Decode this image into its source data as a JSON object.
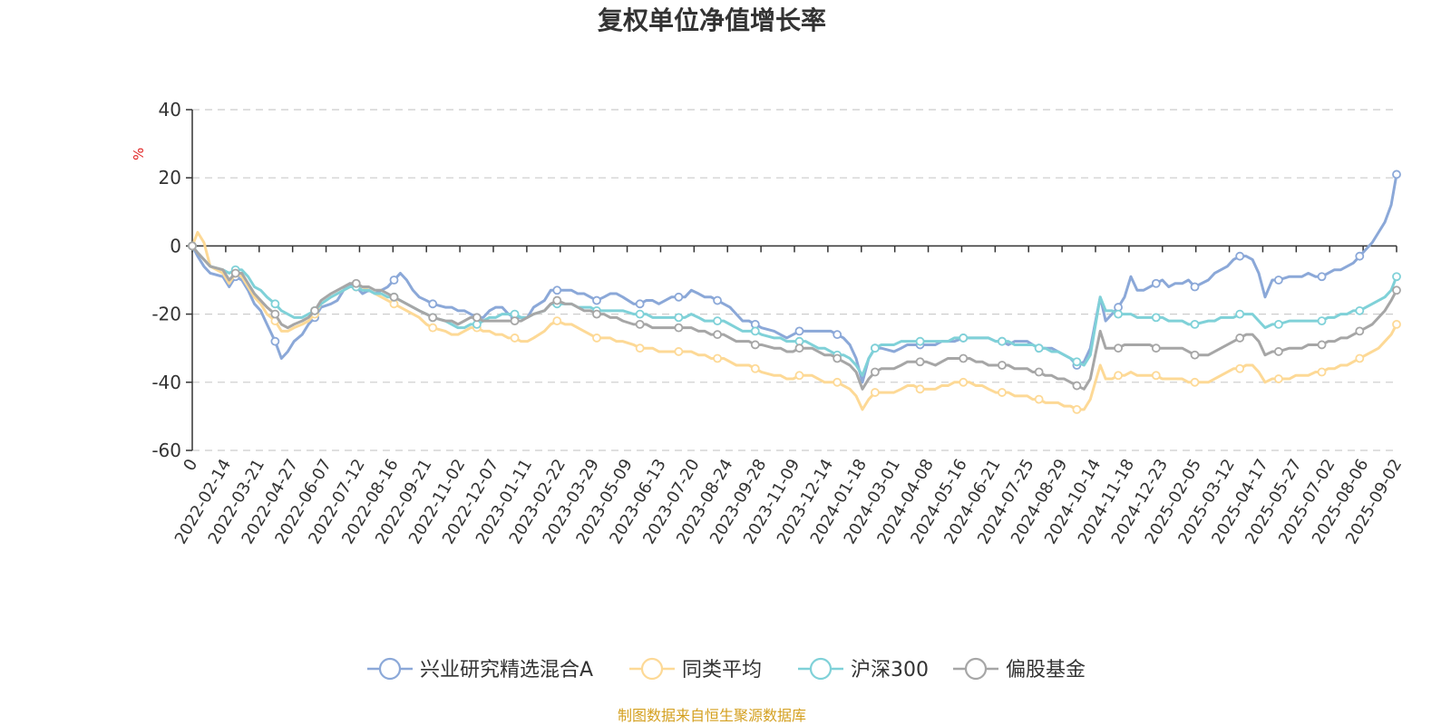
{
  "chart_data": {
    "type": "line",
    "title": "复权单位净值增长率",
    "ylabel": "%",
    "ylim": [
      -60,
      40
    ],
    "yticks": [
      40,
      20,
      0,
      -20,
      -40,
      -60
    ],
    "grid": true,
    "legend_position": "bottom-center",
    "x_tick_labels": [
      "0",
      "2022-02-14",
      "2022-03-21",
      "2022-04-27",
      "2022-06-07",
      "2022-07-12",
      "2022-08-16",
      "2022-09-21",
      "2022-11-02",
      "2022-12-07",
      "2023-01-11",
      "2023-02-22",
      "2023-03-29",
      "2023-05-09",
      "2023-06-13",
      "2023-07-20",
      "2023-08-24",
      "2023-09-28",
      "2023-11-09",
      "2023-12-14",
      "2024-01-18",
      "2024-03-01",
      "2024-04-08",
      "2024-05-16",
      "2024-06-21",
      "2024-07-25",
      "2024-08-29",
      "2024-10-14",
      "2024-11-18",
      "2024-12-23",
      "2025-02-05",
      "2025-03-12",
      "2025-04-17",
      "2025-05-27",
      "2025-07-02",
      "2025-08-06",
      "2025-09-02"
    ],
    "x": [
      "2022-01-04",
      "2022-01-10",
      "2022-01-17",
      "2022-01-24",
      "2022-02-07",
      "2022-02-14",
      "2022-02-21",
      "2022-02-28",
      "2022-03-07",
      "2022-03-14",
      "2022-03-21",
      "2022-03-28",
      "2022-04-06",
      "2022-04-13",
      "2022-04-20",
      "2022-04-27",
      "2022-05-06",
      "2022-05-13",
      "2022-05-20",
      "2022-05-27",
      "2022-06-07",
      "2022-06-14",
      "2022-06-21",
      "2022-06-28",
      "2022-07-05",
      "2022-07-12",
      "2022-07-19",
      "2022-07-26",
      "2022-08-02",
      "2022-08-09",
      "2022-08-16",
      "2022-08-23",
      "2022-08-30",
      "2022-09-06",
      "2022-09-13",
      "2022-09-21",
      "2022-09-28",
      "2022-10-12",
      "2022-10-19",
      "2022-10-26",
      "2022-11-02",
      "2022-11-09",
      "2022-11-16",
      "2022-11-23",
      "2022-11-30",
      "2022-12-07",
      "2022-12-14",
      "2022-12-21",
      "2022-12-28",
      "2023-01-04",
      "2023-01-11",
      "2023-01-18",
      "2023-01-30",
      "2023-02-06",
      "2023-02-13",
      "2023-02-22",
      "2023-03-01",
      "2023-03-08",
      "2023-03-15",
      "2023-03-22",
      "2023-03-29",
      "2023-04-06",
      "2023-04-13",
      "2023-04-20",
      "2023-04-27",
      "2023-05-09",
      "2023-05-16",
      "2023-05-23",
      "2023-05-30",
      "2023-06-06",
      "2023-06-13",
      "2023-06-20",
      "2023-06-28",
      "2023-07-05",
      "2023-07-12",
      "2023-07-20",
      "2023-07-27",
      "2023-08-03",
      "2023-08-10",
      "2023-08-17",
      "2023-08-24",
      "2023-08-31",
      "2023-09-07",
      "2023-09-14",
      "2023-09-21",
      "2023-09-28",
      "2023-10-12",
      "2023-10-19",
      "2023-10-26",
      "2023-11-02",
      "2023-11-09",
      "2023-11-16",
      "2023-11-23",
      "2023-11-30",
      "2023-12-07",
      "2023-12-14",
      "2023-12-21",
      "2023-12-28",
      "2024-01-04",
      "2024-01-11",
      "2024-01-18",
      "2024-01-25",
      "2024-02-01",
      "2024-02-08",
      "2024-02-22",
      "2024-03-01",
      "2024-03-08",
      "2024-03-15",
      "2024-03-22",
      "2024-03-29",
      "2024-04-08",
      "2024-04-15",
      "2024-04-22",
      "2024-04-29",
      "2024-05-09",
      "2024-05-16",
      "2024-05-23",
      "2024-05-30",
      "2024-06-06",
      "2024-06-14",
      "2024-06-21",
      "2024-06-28",
      "2024-07-05",
      "2024-07-12",
      "2024-07-19",
      "2024-07-25",
      "2024-08-01",
      "2024-08-08",
      "2024-08-15",
      "2024-08-22",
      "2024-08-29",
      "2024-09-05",
      "2024-09-12",
      "2024-09-20",
      "2024-09-27",
      "2024-10-08",
      "2024-10-14",
      "2024-10-21",
      "2024-10-28",
      "2024-11-04",
      "2024-11-11",
      "2024-11-18",
      "2024-11-25",
      "2024-12-02",
      "2024-12-09",
      "2024-12-16",
      "2024-12-23",
      "2024-12-30",
      "2025-01-07",
      "2025-01-14",
      "2025-01-21",
      "2025-02-05",
      "2025-02-12",
      "2025-02-19",
      "2025-02-26",
      "2025-03-05",
      "2025-03-12",
      "2025-03-19",
      "2025-03-26",
      "2025-04-02",
      "2025-04-09",
      "2025-04-17",
      "2025-04-24",
      "2025-05-06",
      "2025-05-13",
      "2025-05-20",
      "2025-05-27",
      "2025-06-04",
      "2025-06-11",
      "2025-06-18",
      "2025-06-25",
      "2025-07-02",
      "2025-07-09",
      "2025-07-16",
      "2025-07-23",
      "2025-07-30",
      "2025-08-06",
      "2025-08-13",
      "2025-08-20",
      "2025-08-27",
      "2025-09-02"
    ],
    "series": [
      {
        "name": "兴业研究精选混合A",
        "color": "#8ba8d8",
        "values": [
          0,
          -3,
          -6,
          -8,
          -9,
          -12,
          -9,
          -10,
          -13,
          -17,
          -19,
          -23,
          -28,
          -33,
          -31,
          -28,
          -26,
          -23,
          -21,
          -18,
          -17,
          -16,
          -13,
          -11,
          -12,
          -14,
          -13,
          -14,
          -13,
          -12,
          -10,
          -8,
          -10,
          -13,
          -15,
          -16,
          -17,
          -18,
          -18,
          -19,
          -19,
          -20,
          -21,
          -21,
          -19,
          -18,
          -18,
          -20,
          -21,
          -21,
          -21,
          -18,
          -16,
          -13,
          -13,
          -13,
          -13,
          -14,
          -14,
          -15,
          -16,
          -15,
          -14,
          -14,
          -15,
          -17,
          -17,
          -16,
          -16,
          -17,
          -16,
          -15,
          -15,
          -15,
          -13,
          -14,
          -15,
          -15,
          -16,
          -17,
          -18,
          -20,
          -22,
          -22,
          -23,
          -24,
          -25,
          -26,
          -27,
          -26,
          -25,
          -25,
          -25,
          -25,
          -25,
          -25,
          -26,
          -27,
          -29,
          -33,
          -40,
          -33,
          -30,
          -30,
          -31,
          -30,
          -29,
          -29,
          -29,
          -29,
          -29,
          -28,
          -28,
          -28,
          -27,
          -27,
          -27,
          -27,
          -27,
          -28,
          -28,
          -29,
          -28,
          -28,
          -28,
          -29,
          -30,
          -30,
          -30,
          -31,
          -32,
          -33,
          -35,
          -34,
          -30,
          -15,
          -22,
          -20,
          -18,
          -15,
          -9,
          -13,
          -13,
          -12,
          -11,
          -10,
          -12,
          -11,
          -11,
          -10,
          -12,
          -10,
          -8,
          -7,
          -6,
          -4,
          -3,
          -3,
          -4,
          -8,
          -15,
          -10,
          -10,
          -9,
          -9,
          -9,
          -8,
          -9,
          -9,
          -8,
          -7,
          -7,
          -6,
          -5,
          -3,
          -1,
          1,
          4,
          7,
          12,
          21
        ]
      },
      {
        "name": "同类平均",
        "color": "#fdd996",
        "values": [
          0,
          4,
          1,
          -6,
          -8,
          -11,
          -8,
          -9,
          -12,
          -15,
          -17,
          -20,
          -22,
          -25,
          -25,
          -24,
          -23,
          -22,
          -20,
          -17,
          -15,
          -14,
          -13,
          -12,
          -12,
          -12,
          -13,
          -14,
          -15,
          -16,
          -17,
          -18,
          -19,
          -20,
          -21,
          -23,
          -24,
          -25,
          -26,
          -26,
          -25,
          -24,
          -24,
          -25,
          -25,
          -26,
          -26,
          -27,
          -27,
          -28,
          -28,
          -27,
          -25,
          -23,
          -22,
          -23,
          -23,
          -24,
          -25,
          -26,
          -27,
          -27,
          -27,
          -28,
          -28,
          -29,
          -30,
          -30,
          -30,
          -31,
          -31,
          -31,
          -31,
          -31,
          -31,
          -32,
          -32,
          -33,
          -33,
          -33,
          -34,
          -35,
          -35,
          -35,
          -36,
          -37,
          -38,
          -38,
          -39,
          -39,
          -38,
          -38,
          -38,
          -39,
          -40,
          -40,
          -40,
          -41,
          -42,
          -44,
          -48,
          -45,
          -43,
          -43,
          -43,
          -42,
          -41,
          -41,
          -42,
          -42,
          -42,
          -41,
          -41,
          -40,
          -40,
          -40,
          -41,
          -41,
          -42,
          -43,
          -43,
          -43,
          -44,
          -44,
          -44,
          -45,
          -45,
          -46,
          -46,
          -46,
          -47,
          -47,
          -48,
          -48,
          -45,
          -35,
          -39,
          -39,
          -38,
          -38,
          -37,
          -38,
          -38,
          -38,
          -38,
          -39,
          -39,
          -39,
          -39,
          -40,
          -40,
          -40,
          -39,
          -38,
          -37,
          -36,
          -36,
          -35,
          -35,
          -37,
          -40,
          -39,
          -39,
          -39,
          -38,
          -38,
          -38,
          -37,
          -37,
          -36,
          -36,
          -35,
          -35,
          -34,
          -33,
          -32,
          -31,
          -30,
          -28,
          -26,
          -23
        ]
      },
      {
        "name": "沪深300",
        "color": "#7fd1d8",
        "values": [
          0,
          -2,
          -4,
          -6,
          -7,
          -8,
          -7,
          -7,
          -9,
          -12,
          -13,
          -15,
          -17,
          -19,
          -20,
          -21,
          -21,
          -20,
          -19,
          -17,
          -15,
          -14,
          -13,
          -12,
          -12,
          -13,
          -13,
          -14,
          -14,
          -15,
          -15,
          -16,
          -17,
          -18,
          -19,
          -20,
          -21,
          -22,
          -23,
          -24,
          -24,
          -23,
          -23,
          -22,
          -21,
          -21,
          -20,
          -20,
          -20,
          -21,
          -21,
          -20,
          -19,
          -17,
          -17,
          -17,
          -17,
          -18,
          -18,
          -18,
          -19,
          -19,
          -19,
          -19,
          -19,
          -20,
          -20,
          -20,
          -21,
          -21,
          -21,
          -21,
          -21,
          -21,
          -20,
          -21,
          -22,
          -22,
          -22,
          -22,
          -23,
          -24,
          -25,
          -25,
          -25,
          -26,
          -27,
          -27,
          -28,
          -28,
          -28,
          -28,
          -29,
          -30,
          -30,
          -31,
          -32,
          -32,
          -33,
          -35,
          -38,
          -33,
          -30,
          -29,
          -29,
          -28,
          -28,
          -28,
          -28,
          -28,
          -28,
          -28,
          -28,
          -27,
          -27,
          -27,
          -27,
          -27,
          -27,
          -28,
          -28,
          -28,
          -29,
          -29,
          -29,
          -29,
          -30,
          -30,
          -31,
          -31,
          -32,
          -33,
          -34,
          -35,
          -32,
          -15,
          -19,
          -19,
          -20,
          -20,
          -20,
          -21,
          -21,
          -21,
          -21,
          -21,
          -22,
          -22,
          -22,
          -23,
          -23,
          -22,
          -22,
          -21,
          -21,
          -21,
          -20,
          -20,
          -20,
          -22,
          -24,
          -23,
          -23,
          -22,
          -22,
          -22,
          -22,
          -22,
          -22,
          -21,
          -21,
          -20,
          -20,
          -19,
          -19,
          -18,
          -17,
          -16,
          -15,
          -13,
          -9
        ]
      },
      {
        "name": "偏股基金",
        "color": "#a6a6a6",
        "values": [
          0,
          -2,
          -4,
          -6,
          -7,
          -10,
          -8,
          -8,
          -11,
          -14,
          -16,
          -18,
          -20,
          -23,
          -24,
          -23,
          -22,
          -21,
          -19,
          -16,
          -14,
          -13,
          -12,
          -11,
          -11,
          -12,
          -12,
          -13,
          -13,
          -14,
          -15,
          -16,
          -17,
          -18,
          -19,
          -20,
          -21,
          -22,
          -22,
          -23,
          -22,
          -21,
          -21,
          -22,
          -22,
          -22,
          -22,
          -22,
          -22,
          -22,
          -21,
          -20,
          -19,
          -17,
          -16,
          -17,
          -17,
          -18,
          -19,
          -19,
          -20,
          -20,
          -21,
          -21,
          -22,
          -23,
          -23,
          -23,
          -24,
          -24,
          -24,
          -24,
          -24,
          -24,
          -24,
          -25,
          -25,
          -26,
          -26,
          -26,
          -27,
          -28,
          -28,
          -28,
          -29,
          -29,
          -30,
          -30,
          -31,
          -31,
          -30,
          -30,
          -30,
          -31,
          -32,
          -32,
          -33,
          -34,
          -35,
          -37,
          -42,
          -39,
          -37,
          -36,
          -36,
          -35,
          -34,
          -34,
          -34,
          -34,
          -35,
          -34,
          -33,
          -33,
          -33,
          -33,
          -34,
          -34,
          -35,
          -35,
          -35,
          -35,
          -36,
          -36,
          -36,
          -37,
          -37,
          -38,
          -38,
          -39,
          -39,
          -40,
          -41,
          -42,
          -39,
          -25,
          -30,
          -30,
          -30,
          -29,
          -29,
          -29,
          -29,
          -29,
          -30,
          -30,
          -30,
          -30,
          -30,
          -31,
          -32,
          -32,
          -31,
          -30,
          -29,
          -28,
          -27,
          -26,
          -26,
          -28,
          -32,
          -31,
          -31,
          -30,
          -30,
          -30,
          -29,
          -29,
          -29,
          -28,
          -28,
          -27,
          -27,
          -26,
          -25,
          -24,
          -23,
          -21,
          -19,
          -16,
          -13
        ]
      }
    ],
    "source_note": "制图数据来自恒生聚源数据库"
  }
}
